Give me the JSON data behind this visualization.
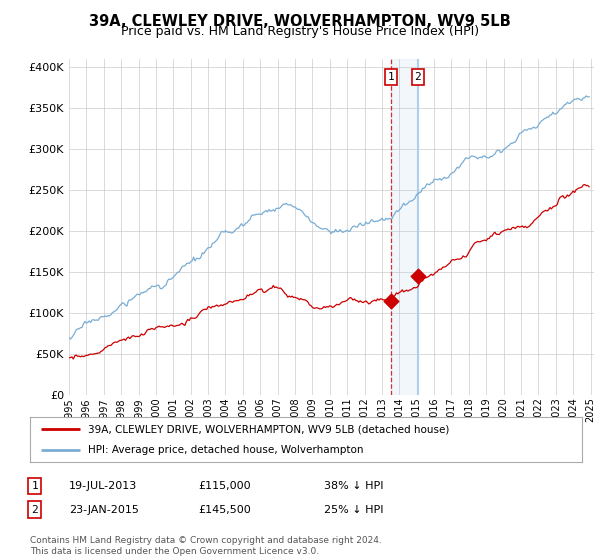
{
  "title": "39A, CLEWLEY DRIVE, WOLVERHAMPTON, WV9 5LB",
  "subtitle": "Price paid vs. HM Land Registry's House Price Index (HPI)",
  "ylabel_ticks": [
    "£0",
    "£50K",
    "£100K",
    "£150K",
    "£200K",
    "£250K",
    "£300K",
    "£350K",
    "£400K"
  ],
  "ytick_values": [
    0,
    50000,
    100000,
    150000,
    200000,
    250000,
    300000,
    350000,
    400000
  ],
  "ylim": [
    0,
    410000
  ],
  "hpi_color": "#7aadd4",
  "price_color": "#cc0000",
  "transaction1": {
    "date": "19-JUL-2013",
    "price": 115000,
    "label": "1",
    "hpi_pct": "38% ↓ HPI",
    "year": 2013.54
  },
  "transaction2": {
    "date": "23-JAN-2015",
    "price": 145500,
    "label": "2",
    "hpi_pct": "25% ↓ HPI",
    "year": 2015.07
  },
  "legend_price_label": "39A, CLEWLEY DRIVE, WOLVERHAMPTON, WV9 5LB (detached house)",
  "legend_hpi_label": "HPI: Average price, detached house, Wolverhampton",
  "footer": "Contains HM Land Registry data © Crown copyright and database right 2024.\nThis data is licensed under the Open Government Licence v3.0.",
  "background_color": "#ffffff",
  "plot_bg_color": "#ffffff",
  "grid_color": "#cccccc",
  "title_fontsize": 10.5,
  "subtitle_fontsize": 9
}
